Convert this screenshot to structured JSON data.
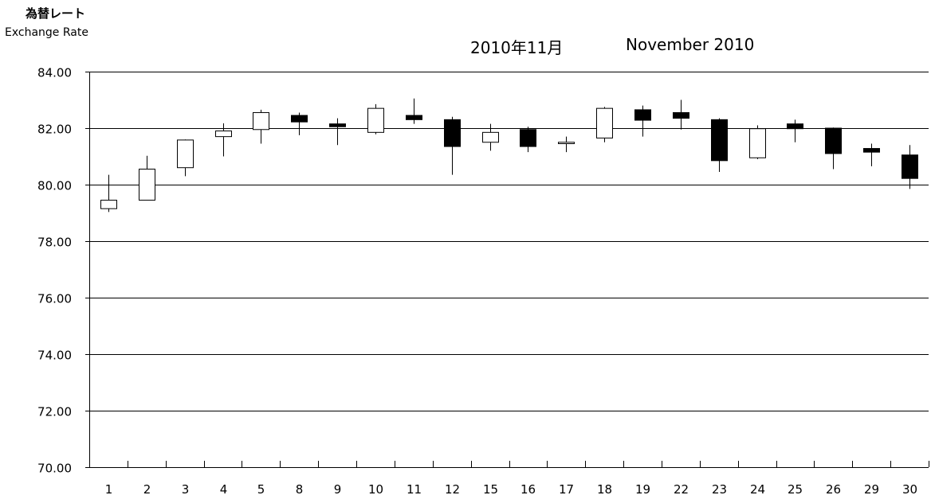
{
  "chart_data": {
    "type": "candlestick",
    "title_jp": "2010年11月",
    "title_en": "November 2010",
    "ylabel_jp": "為替レート",
    "ylabel_en": "Exchange Rate",
    "ylim": [
      70,
      84
    ],
    "yticks": [
      "70.00",
      "72.00",
      "74.00",
      "76.00",
      "78.00",
      "80.00",
      "82.00",
      "84.00"
    ],
    "categories": [
      "1",
      "2",
      "3",
      "4",
      "5",
      "8",
      "9",
      "10",
      "11",
      "12",
      "15",
      "16",
      "17",
      "18",
      "19",
      "22",
      "23",
      "24",
      "25",
      "26",
      "29",
      "30"
    ],
    "series": [
      {
        "open": 79.15,
        "high": 80.35,
        "low": 79.03,
        "close": 79.45
      },
      {
        "open": 79.45,
        "high": 81.02,
        "low": 79.45,
        "close": 80.55
      },
      {
        "open": 80.6,
        "high": 81.6,
        "low": 80.3,
        "close": 81.58
      },
      {
        "open": 81.7,
        "high": 82.17,
        "low": 81.0,
        "close": 81.9
      },
      {
        "open": 81.95,
        "high": 82.65,
        "low": 81.45,
        "close": 82.55
      },
      {
        "open": 82.45,
        "high": 82.55,
        "low": 81.75,
        "close": 82.22
      },
      {
        "open": 82.15,
        "high": 82.35,
        "low": 81.4,
        "close": 82.05
      },
      {
        "open": 81.85,
        "high": 82.85,
        "low": 81.78,
        "close": 82.7
      },
      {
        "open": 82.45,
        "high": 83.05,
        "low": 82.15,
        "close": 82.3
      },
      {
        "open": 82.3,
        "high": 82.4,
        "low": 80.35,
        "close": 81.35
      },
      {
        "open": 81.5,
        "high": 82.15,
        "low": 81.2,
        "close": 81.85
      },
      {
        "open": 81.95,
        "high": 82.05,
        "low": 81.15,
        "close": 81.35
      },
      {
        "open": 81.45,
        "high": 81.7,
        "low": 81.15,
        "close": 81.5
      },
      {
        "open": 81.65,
        "high": 82.75,
        "low": 81.5,
        "close": 82.7
      },
      {
        "open": 82.65,
        "high": 82.8,
        "low": 81.7,
        "close": 82.28
      },
      {
        "open": 82.55,
        "high": 83.0,
        "low": 81.95,
        "close": 82.35
      },
      {
        "open": 82.3,
        "high": 82.35,
        "low": 80.45,
        "close": 80.85
      },
      {
        "open": 80.95,
        "high": 82.1,
        "low": 80.9,
        "close": 81.98
      },
      {
        "open": 82.15,
        "high": 82.3,
        "low": 81.5,
        "close": 81.98
      },
      {
        "open": 82.0,
        "high": 82.02,
        "low": 80.55,
        "close": 81.1
      },
      {
        "open": 81.28,
        "high": 81.45,
        "low": 80.65,
        "close": 81.15
      },
      {
        "open": 81.05,
        "high": 81.4,
        "low": 79.85,
        "close": 80.22
      }
    ],
    "grid": true,
    "colors": {
      "up": "#ffffff",
      "down": "#000000",
      "line": "#000000"
    }
  }
}
